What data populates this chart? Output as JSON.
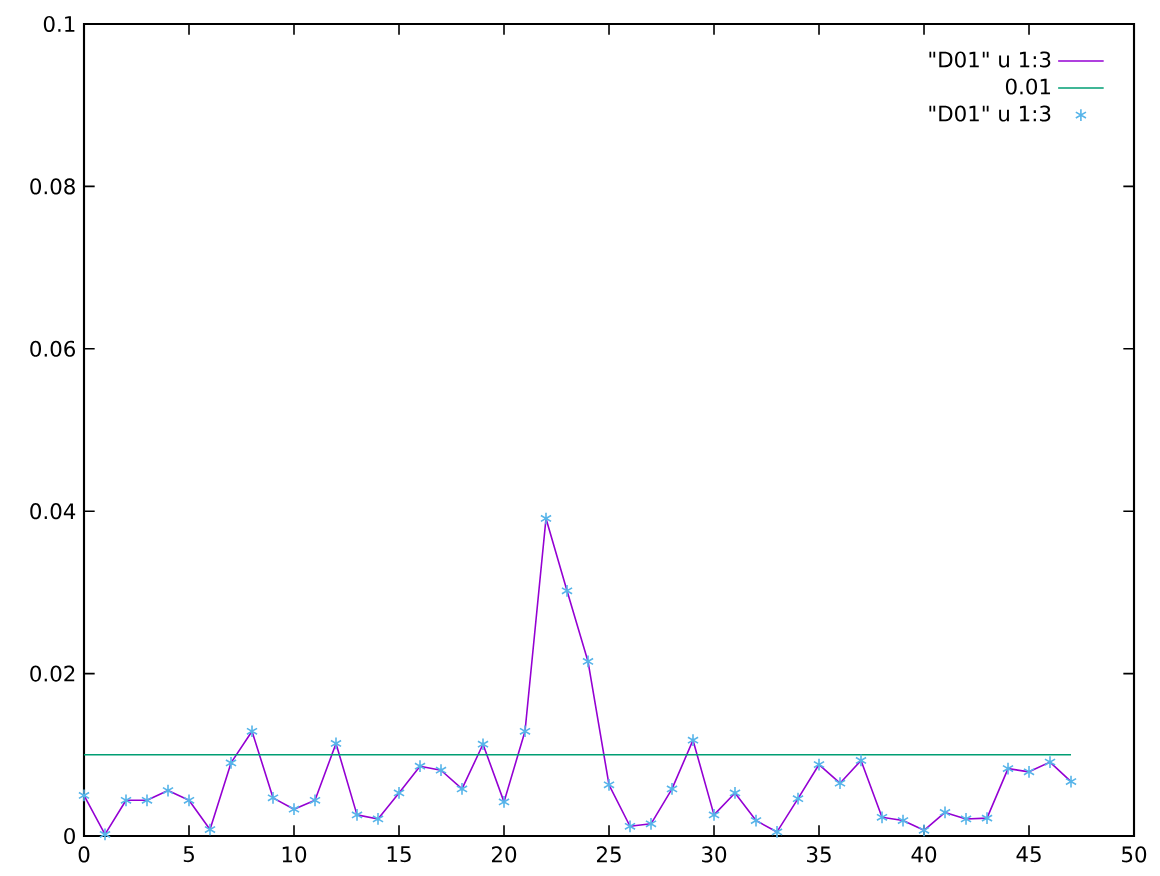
{
  "chart_data": {
    "type": "line",
    "x": [
      0,
      1,
      2,
      3,
      4,
      5,
      6,
      7,
      8,
      9,
      10,
      11,
      12,
      13,
      14,
      15,
      16,
      17,
      18,
      19,
      20,
      21,
      22,
      23,
      24,
      25,
      26,
      27,
      28,
      29,
      30,
      31,
      32,
      33,
      34,
      35,
      36,
      37,
      38,
      39,
      40,
      41,
      42,
      43,
      44,
      45,
      46,
      47
    ],
    "series": [
      {
        "name": "\"D01\" u 1:3",
        "color": "#9400d3",
        "marker": "none",
        "values": [
          0.005,
          0.0002,
          0.0044,
          0.0044,
          0.0056,
          0.0044,
          0.0008,
          0.009,
          0.0129,
          0.0047,
          0.0033,
          0.0044,
          0.0114,
          0.0026,
          0.0021,
          0.0053,
          0.0086,
          0.0081,
          0.0058,
          0.0113,
          0.0042,
          0.0129,
          0.0391,
          0.0302,
          0.0215,
          0.0063,
          0.0012,
          0.0015,
          0.0058,
          0.0118,
          0.0026,
          0.0053,
          0.0019,
          0.0005,
          0.0046,
          0.0088,
          0.0065,
          0.0093,
          0.0023,
          0.0019,
          0.0007,
          0.0029,
          0.0021,
          0.0022,
          0.0083,
          0.0079,
          0.0091,
          0.0067
        ]
      },
      {
        "name": "0.01",
        "color": "#009e73",
        "marker": "none",
        "x": [
          0,
          47
        ],
        "values": [
          0.01,
          0.01
        ]
      },
      {
        "name": "\"D01\" u 1:3",
        "type": "scatter",
        "color": "#56b4e9",
        "marker": "cross",
        "values": [
          0.005,
          0.0002,
          0.0044,
          0.0044,
          0.0056,
          0.0044,
          0.0008,
          0.009,
          0.0129,
          0.0047,
          0.0033,
          0.0044,
          0.0114,
          0.0026,
          0.0021,
          0.0053,
          0.0086,
          0.0081,
          0.0058,
          0.0113,
          0.0042,
          0.0129,
          0.0391,
          0.0302,
          0.0215,
          0.0063,
          0.0012,
          0.0015,
          0.0058,
          0.0118,
          0.0026,
          0.0053,
          0.0019,
          0.0005,
          0.0046,
          0.0088,
          0.0065,
          0.0093,
          0.0023,
          0.0019,
          0.0007,
          0.0029,
          0.0021,
          0.0022,
          0.0083,
          0.0079,
          0.0091,
          0.0067
        ]
      }
    ],
    "xlim": [
      0,
      50
    ],
    "xticks": [
      0,
      5,
      10,
      15,
      20,
      25,
      30,
      35,
      40,
      45,
      50
    ],
    "ylim": [
      0,
      0.1
    ],
    "yticks": [
      0,
      0.02,
      0.04,
      0.06,
      0.08,
      0.1
    ],
    "grid": false,
    "legend": "top right"
  }
}
